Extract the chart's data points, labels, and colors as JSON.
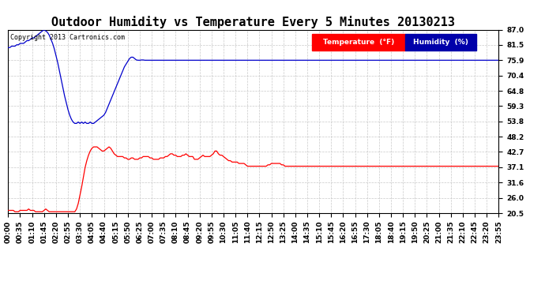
{
  "title": "Outdoor Humidity vs Temperature Every 5 Minutes 20130213",
  "copyright": "Copyright 2013 Cartronics.com",
  "background_color": "#ffffff",
  "plot_bg_color": "#ffffff",
  "grid_color": "#bbbbbb",
  "yticks": [
    20.5,
    26.0,
    31.6,
    37.1,
    42.7,
    48.2,
    53.8,
    59.3,
    64.8,
    70.4,
    75.9,
    81.5,
    87.0
  ],
  "ymin": 20.5,
  "ymax": 87.0,
  "temp_color": "#ff0000",
  "humidity_color": "#0000cc",
  "title_fontsize": 11,
  "axis_fontsize": 6.5,
  "n_points": 288,
  "humidity_data": [
    80.5,
    80.5,
    81.0,
    81.0,
    81.0,
    81.5,
    81.5,
    82.0,
    82.0,
    82.0,
    82.5,
    83.0,
    83.0,
    83.5,
    84.0,
    84.0,
    84.5,
    85.0,
    85.5,
    86.0,
    86.5,
    87.0,
    86.5,
    86.0,
    85.0,
    83.5,
    82.0,
    80.0,
    77.5,
    75.0,
    72.0,
    69.0,
    66.0,
    63.0,
    60.5,
    58.0,
    56.0,
    54.5,
    53.5,
    53.0,
    53.0,
    53.5,
    53.0,
    53.5,
    53.0,
    53.5,
    53.0,
    53.0,
    53.5,
    53.0,
    53.0,
    53.5,
    54.0,
    54.5,
    55.0,
    55.5,
    56.0,
    57.0,
    58.5,
    60.0,
    61.5,
    63.0,
    64.5,
    66.0,
    67.5,
    69.0,
    70.5,
    72.0,
    73.5,
    74.5,
    75.5,
    76.5,
    77.0,
    77.0,
    76.5,
    76.0,
    75.9,
    75.9,
    76.0,
    76.0,
    75.9,
    75.9,
    75.9,
    75.9,
    75.9,
    75.9,
    75.9,
    75.9,
    75.9,
    75.9,
    75.9,
    75.9,
    75.9,
    75.9,
    75.9,
    75.9,
    75.9,
    75.9,
    75.9,
    75.9,
    75.9,
    75.9,
    75.9,
    75.9,
    75.9,
    75.9,
    75.9,
    75.9,
    75.9,
    75.9,
    75.9,
    75.9,
    75.9,
    75.9,
    75.9,
    75.9,
    75.9,
    75.9,
    75.9,
    75.9,
    75.9,
    75.9,
    75.9,
    75.9,
    75.9,
    75.9,
    75.9,
    75.9,
    75.9,
    75.9,
    75.9,
    75.9,
    75.9,
    75.9,
    75.9,
    75.9,
    75.9,
    75.9,
    75.9,
    75.9,
    75.9,
    75.9,
    75.9,
    75.9,
    75.9,
    75.9,
    75.9,
    75.9,
    75.9,
    75.9,
    75.9,
    75.9,
    75.9,
    75.9,
    75.9,
    75.9,
    75.9,
    75.9,
    75.9,
    75.9,
    75.9,
    75.9,
    75.9,
    75.9,
    75.9,
    75.9,
    75.9,
    75.9,
    75.9,
    75.9,
    75.9,
    75.9,
    75.9,
    75.9,
    75.9,
    75.9,
    75.9,
    75.9,
    75.9,
    75.9,
    75.9,
    75.9,
    75.9,
    75.9,
    75.9,
    75.9,
    75.9,
    75.9,
    75.9,
    75.9,
    75.9,
    75.9,
    75.9,
    75.9,
    75.9,
    75.9,
    75.9,
    75.9,
    75.9,
    75.9,
    75.9,
    75.9,
    75.9,
    75.9,
    75.9,
    75.9,
    75.9,
    75.9,
    75.9,
    75.9,
    75.9,
    75.9,
    75.9,
    75.9,
    75.9,
    75.9,
    75.9,
    75.9,
    75.9,
    75.9,
    75.9,
    75.9,
    75.9,
    75.9,
    75.9,
    75.9,
    75.9,
    75.9,
    75.9,
    75.9,
    75.9,
    75.9,
    75.9,
    75.9,
    75.9,
    75.9,
    75.9,
    75.9,
    75.9,
    75.9,
    75.9,
    75.9,
    75.9,
    75.9,
    75.9,
    75.9,
    75.9,
    75.9,
    75.9,
    75.9,
    75.9,
    75.9,
    75.9,
    75.9,
    75.9,
    75.9,
    75.9,
    75.9,
    75.9,
    75.9,
    75.9,
    75.9,
    75.9,
    75.9,
    75.9,
    75.9,
    75.9,
    75.9,
    75.9,
    75.9,
    75.9,
    75.9,
    75.9,
    75.9,
    75.9,
    75.9,
    75.9,
    75.9,
    75.9,
    75.9,
    75.9,
    75.9,
    75.9,
    75.9,
    75.9,
    75.9,
    75.9,
    75.9
  ],
  "temp_data": [
    21.5,
    21.5,
    21.5,
    21.5,
    21.0,
    21.0,
    21.0,
    21.5,
    21.5,
    21.5,
    21.5,
    21.5,
    22.0,
    21.5,
    21.5,
    21.5,
    21.0,
    21.0,
    21.0,
    21.0,
    21.0,
    21.5,
    22.0,
    21.5,
    21.0,
    21.0,
    21.0,
    21.0,
    21.0,
    21.0,
    21.0,
    21.0,
    21.0,
    21.0,
    21.0,
    21.0,
    21.0,
    21.0,
    21.0,
    21.0,
    22.0,
    24.0,
    27.0,
    30.0,
    33.5,
    37.0,
    39.5,
    41.5,
    43.0,
    44.0,
    44.5,
    44.5,
    44.5,
    44.0,
    43.5,
    43.0,
    43.0,
    43.5,
    44.0,
    44.5,
    44.0,
    43.0,
    42.0,
    41.5,
    41.0,
    41.0,
    41.0,
    41.0,
    40.5,
    40.5,
    40.0,
    40.0,
    40.5,
    40.5,
    40.0,
    40.0,
    40.0,
    40.5,
    40.5,
    41.0,
    41.0,
    41.0,
    41.0,
    40.5,
    40.5,
    40.0,
    40.0,
    40.0,
    40.0,
    40.5,
    40.5,
    40.5,
    41.0,
    41.0,
    41.5,
    42.0,
    42.0,
    41.5,
    41.5,
    41.0,
    41.0,
    41.0,
    41.5,
    41.5,
    42.0,
    41.5,
    41.0,
    41.0,
    41.0,
    40.0,
    40.0,
    40.0,
    40.5,
    41.0,
    41.5,
    41.0,
    41.0,
    41.0,
    41.0,
    41.5,
    42.0,
    43.0,
    43.0,
    42.0,
    41.5,
    41.5,
    41.0,
    40.5,
    40.0,
    39.5,
    39.5,
    39.0,
    39.0,
    39.0,
    39.0,
    38.5,
    38.5,
    38.5,
    38.5,
    38.0,
    37.5,
    37.5,
    37.5,
    37.5,
    37.5,
    37.5,
    37.5,
    37.5,
    37.5,
    37.5,
    37.5,
    37.5,
    38.0,
    38.0,
    38.5,
    38.5,
    38.5,
    38.5,
    38.5,
    38.5,
    38.0,
    38.0,
    37.5,
    37.5,
    37.5,
    37.5,
    37.5,
    37.5,
    37.5,
    37.5,
    37.5,
    37.5,
    37.5,
    37.5,
    37.5,
    37.5,
    37.5,
    37.5,
    37.5,
    37.5,
    37.5,
    37.5,
    37.5,
    37.5,
    37.5,
    37.5,
    37.5,
    37.5,
    37.5,
    37.5,
    37.5,
    37.5,
    37.5,
    37.5,
    37.5,
    37.5,
    37.5,
    37.5,
    37.5,
    37.5,
    37.5,
    37.5,
    37.5,
    37.5,
    37.5,
    37.5,
    37.5,
    37.5,
    37.5,
    37.5,
    37.5,
    37.5,
    37.5,
    37.5,
    37.5,
    37.5,
    37.5,
    37.5,
    37.5,
    37.5,
    37.5,
    37.5,
    37.5,
    37.5,
    37.5,
    37.5,
    37.5,
    37.5,
    37.5,
    37.5,
    37.5,
    37.5,
    37.5,
    37.5,
    37.5,
    37.5,
    37.5,
    37.5,
    37.5,
    37.5,
    37.5,
    37.5,
    37.5,
    37.5,
    37.5,
    37.5,
    37.5,
    37.5,
    37.5,
    37.5,
    37.5,
    37.5,
    37.5,
    37.5,
    37.5,
    37.5,
    37.5,
    37.5,
    37.5,
    37.5,
    37.5,
    37.5,
    37.5,
    37.5,
    37.5,
    37.5,
    37.5,
    37.5,
    37.5,
    37.5,
    37.5,
    37.5,
    37.5,
    37.5,
    37.5,
    37.5,
    37.5,
    37.5,
    37.5,
    37.5,
    37.5,
    37.5,
    37.5,
    37.5,
    37.5,
    37.5,
    37.5,
    37.5
  ]
}
